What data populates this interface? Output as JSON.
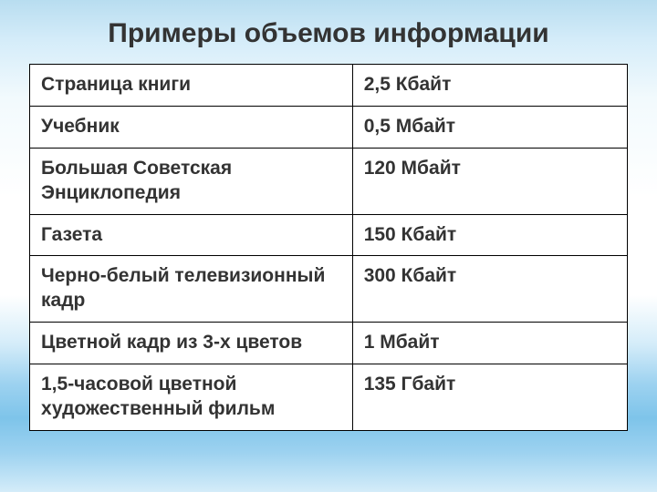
{
  "title": "Примеры объемов информации",
  "table": {
    "type": "table",
    "columns": [
      "item",
      "size"
    ],
    "col_widths_pct": [
      54,
      46
    ],
    "rows": [
      [
        "Страница книги",
        "2,5 Кбайт"
      ],
      [
        "Учебник",
        "0,5 Мбайт"
      ],
      [
        "Большая Советская Энциклопедия",
        "120 Мбайт"
      ],
      [
        "Газета",
        "150 Кбайт"
      ],
      [
        "Черно-белый телевизионный кадр",
        "300 Кбайт"
      ],
      [
        "Цветной кадр из 3-х цветов",
        "1 Мбайт"
      ],
      [
        "1,5-часовой цветной художественный фильм",
        "135 Гбайт"
      ]
    ],
    "cell_fontsize": 21,
    "cell_fontweight": "bold",
    "cell_color": "#333333",
    "cell_bg": "#ffffff",
    "border_color": "#000000",
    "border_width": 1.5
  },
  "title_style": {
    "fontsize": 30,
    "fontweight": "bold",
    "color": "#333333"
  },
  "background_gradient_colors": [
    "#b8ddf0",
    "#d4ecf9",
    "#f2fafd",
    "#ffffff",
    "#9dd2f0",
    "#7ec4ea"
  ]
}
